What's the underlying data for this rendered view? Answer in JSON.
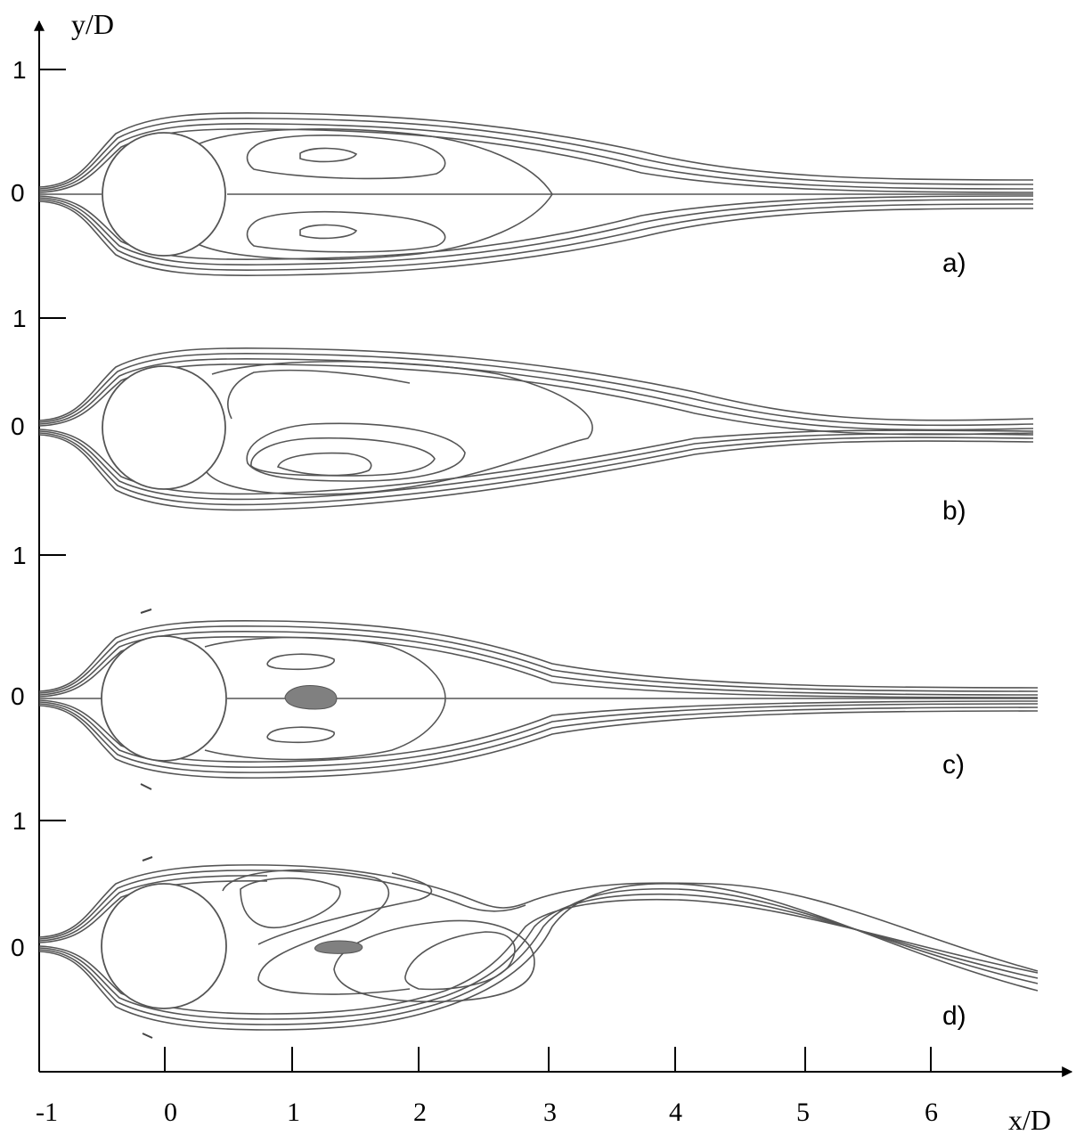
{
  "axes": {
    "x_title": "x/D",
    "y_title": "y/D",
    "x_ticks": [
      "-1",
      "0",
      "1",
      "2",
      "3",
      "4",
      "5",
      "6"
    ],
    "y_tick_one": "1",
    "y_tick_zero": "0"
  },
  "panels": [
    {
      "label": "a)"
    },
    {
      "label": "b)"
    },
    {
      "label": "c)"
    },
    {
      "label": "d)"
    }
  ]
}
